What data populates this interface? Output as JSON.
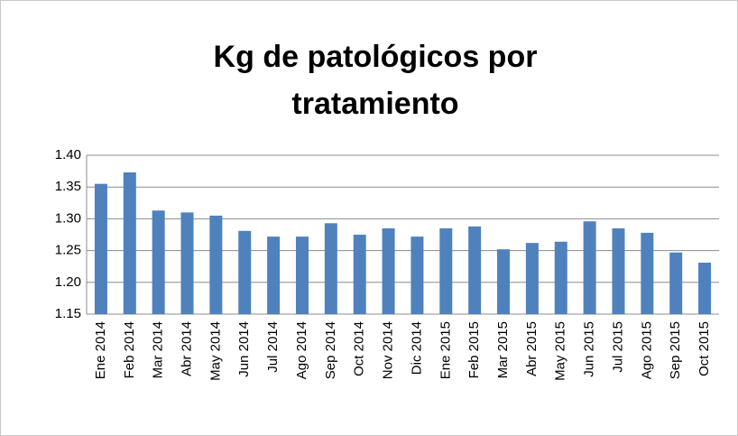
{
  "chart_data": {
    "type": "bar",
    "title": "Kg de patológicos por tratamiento",
    "categories": [
      "Ene 2014",
      "Feb 2014",
      "Mar 2014",
      "Abr 2014",
      "May 2014",
      "Jun 2014",
      "Jul 2014",
      "Ago 2014",
      "Sep 2014",
      "Oct 2014",
      "Nov 2014",
      "Dic 2014",
      "Ene 2015",
      "Feb 2015",
      "Mar 2015",
      "Abr 2015",
      "May 2015",
      "Jun 2015",
      "Jul 2015",
      "Ago 2015",
      "Sep 2015",
      "Oct 2015"
    ],
    "values": [
      1.355,
      1.373,
      1.313,
      1.31,
      1.305,
      1.281,
      1.272,
      1.272,
      1.293,
      1.275,
      1.285,
      1.272,
      1.285,
      1.288,
      1.252,
      1.262,
      1.264,
      1.296,
      1.285,
      1.278,
      1.247,
      1.231
    ],
    "color": "#4f81bd",
    "ylim": [
      1.15,
      1.4
    ],
    "yticks": [
      1.15,
      {
        "value": 1.2,
        "label": "1.20"
      },
      1.25,
      {
        "value": 1.3,
        "label": "1.30"
      },
      1.35,
      {
        "value": 1.4,
        "label": "1.40"
      }
    ],
    "grid": true
  }
}
